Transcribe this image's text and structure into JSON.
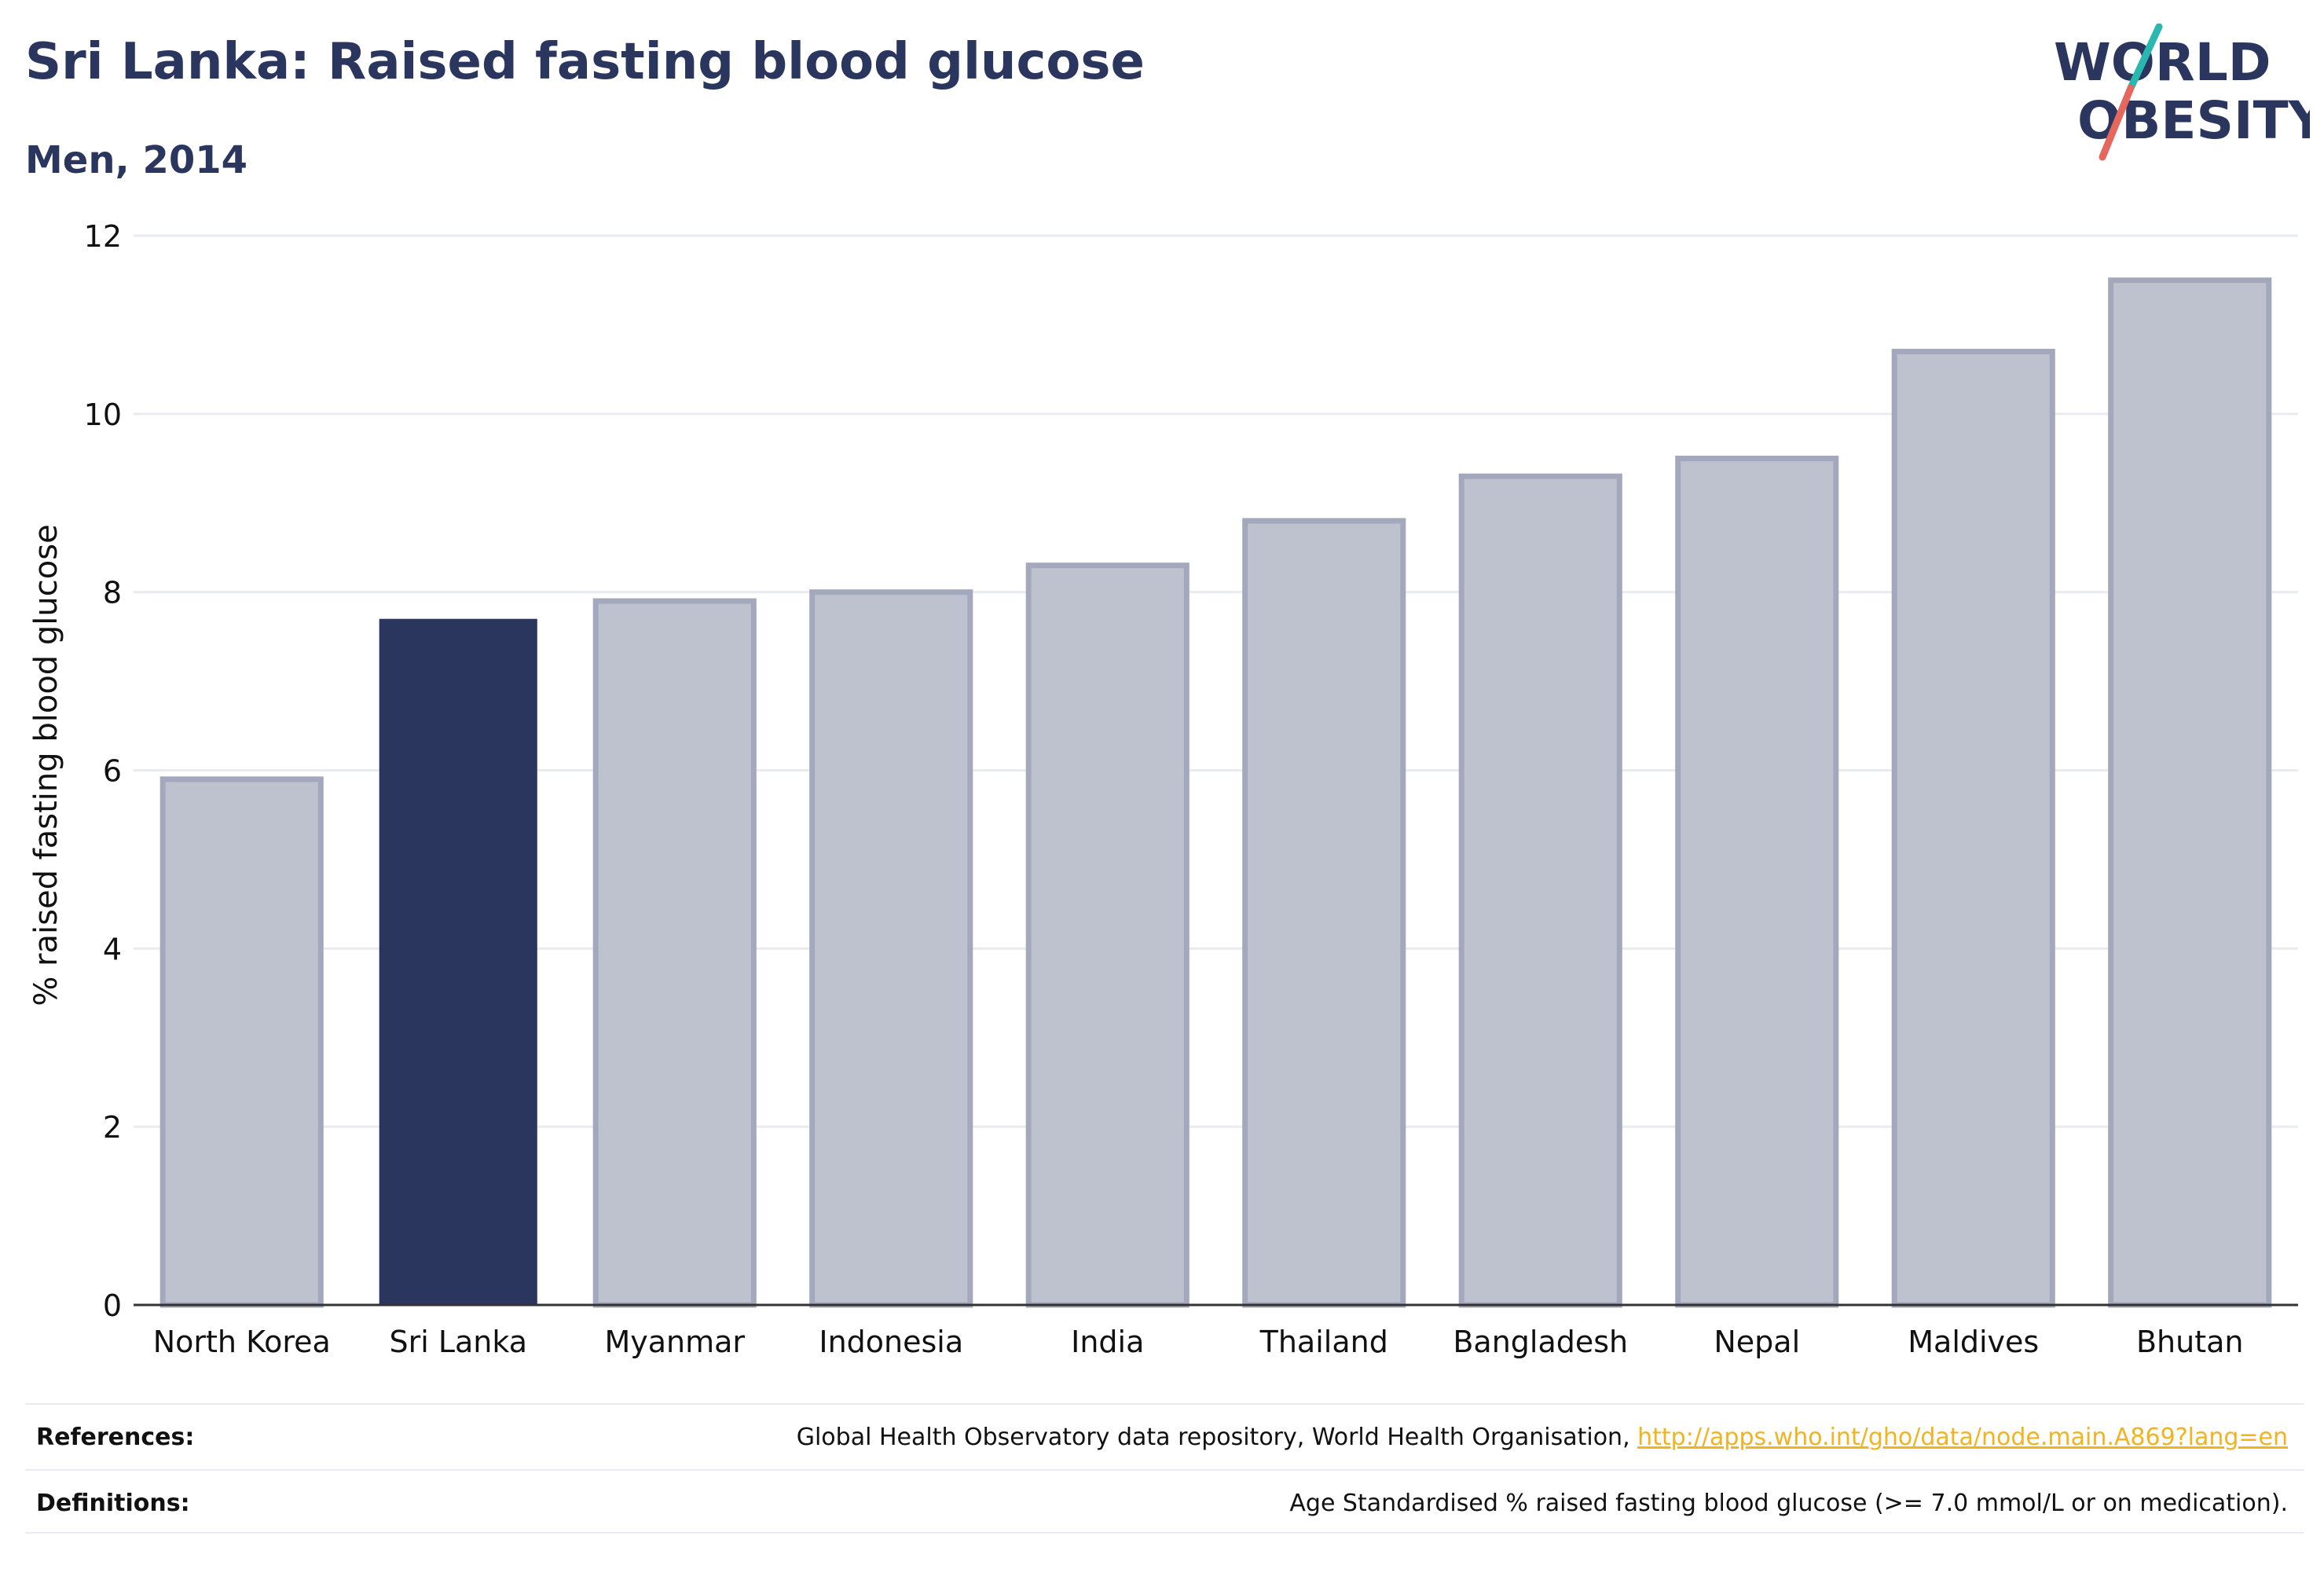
{
  "header": {
    "title": "Sri Lanka: Raised fasting blood glucose",
    "subtitle": "Men, 2014"
  },
  "logo": {
    "line1": "WORLD",
    "line2": "OBESITY",
    "colors": {
      "text": "#2b365f",
      "slash_top": "#2ab7b0",
      "slash_bottom": "#e4685d"
    }
  },
  "chart_data": {
    "type": "bar",
    "title": "Sri Lanka: Raised fasting blood glucose",
    "subtitle": "Men, 2014",
    "ylabel": "% raised fasting blood glucose",
    "xlabel": "",
    "categories": [
      "North Korea",
      "Sri Lanka",
      "Myanmar",
      "Indonesia",
      "India",
      "Thailand",
      "Bangladesh",
      "Nepal",
      "Maldives",
      "Bhutan"
    ],
    "values": [
      5.9,
      7.7,
      7.9,
      8.0,
      8.3,
      8.8,
      9.3,
      9.5,
      10.7,
      11.5
    ],
    "highlight": "Sri Lanka",
    "ylim": [
      0,
      12
    ],
    "yticks": [
      0,
      2,
      4,
      6,
      8,
      10,
      12
    ],
    "grid": true,
    "legend": "none",
    "colors": {
      "highlight_fill": "#2b365f",
      "bar_fill": "#bec1ce",
      "bar_stroke": "#a3a8bd",
      "grid": "#e9ebf0",
      "axis": "#333333"
    }
  },
  "footer": {
    "references_label": "References:",
    "references_text": "Global Health Observatory data repository, World Health Organisation, ",
    "references_link": "http://apps.who.int/gho/data/node.main.A869?lang=en",
    "definitions_label": "Definitions:",
    "definitions_text": "Age Standardised % raised fasting blood glucose (>= 7.0 mmol/L or on medication)."
  }
}
